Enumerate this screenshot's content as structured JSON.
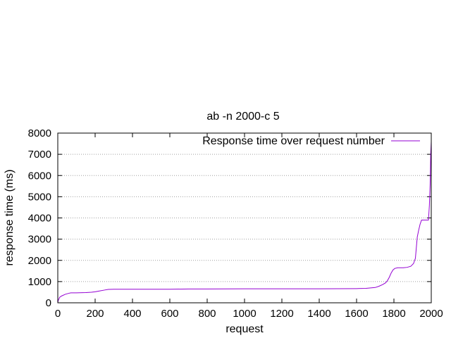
{
  "chart_data": {
    "type": "line",
    "title": "ab -n 2000-c 5",
    "xlabel": "request",
    "ylabel": "response time (ms)",
    "xlim": [
      0,
      2000
    ],
    "ylim": [
      0,
      8000
    ],
    "xticks": [
      0,
      200,
      400,
      600,
      800,
      1000,
      1200,
      1400,
      1600,
      1800,
      2000
    ],
    "yticks": [
      0,
      1000,
      2000,
      3000,
      4000,
      5000,
      6000,
      7000,
      8000
    ],
    "grid": "horizontal dotted",
    "legend_position": "top-right",
    "series": [
      {
        "name": "Response time over request number",
        "color": "#9400d3",
        "points": [
          [
            0,
            0
          ],
          [
            2,
            100
          ],
          [
            10,
            260
          ],
          [
            20,
            320
          ],
          [
            40,
            400
          ],
          [
            60,
            450
          ],
          [
            70,
            470
          ],
          [
            100,
            470
          ],
          [
            150,
            480
          ],
          [
            180,
            500
          ],
          [
            200,
            520
          ],
          [
            220,
            550
          ],
          [
            250,
            600
          ],
          [
            270,
            630
          ],
          [
            300,
            640
          ],
          [
            400,
            640
          ],
          [
            500,
            640
          ],
          [
            600,
            640
          ],
          [
            700,
            650
          ],
          [
            800,
            650
          ],
          [
            1000,
            660
          ],
          [
            1200,
            660
          ],
          [
            1400,
            660
          ],
          [
            1600,
            670
          ],
          [
            1650,
            680
          ],
          [
            1700,
            720
          ],
          [
            1720,
            780
          ],
          [
            1740,
            860
          ],
          [
            1755,
            940
          ],
          [
            1765,
            1040
          ],
          [
            1775,
            1200
          ],
          [
            1785,
            1400
          ],
          [
            1795,
            1550
          ],
          [
            1805,
            1620
          ],
          [
            1820,
            1650
          ],
          [
            1850,
            1650
          ],
          [
            1870,
            1670
          ],
          [
            1890,
            1720
          ],
          [
            1905,
            1850
          ],
          [
            1915,
            2100
          ],
          [
            1920,
            2600
          ],
          [
            1925,
            3100
          ],
          [
            1932,
            3400
          ],
          [
            1940,
            3700
          ],
          [
            1948,
            3900
          ],
          [
            1970,
            3900
          ],
          [
            1985,
            3900
          ],
          [
            1990,
            4600
          ],
          [
            1994,
            5600
          ],
          [
            1997,
            7000
          ],
          [
            2000,
            7600
          ]
        ]
      }
    ]
  }
}
